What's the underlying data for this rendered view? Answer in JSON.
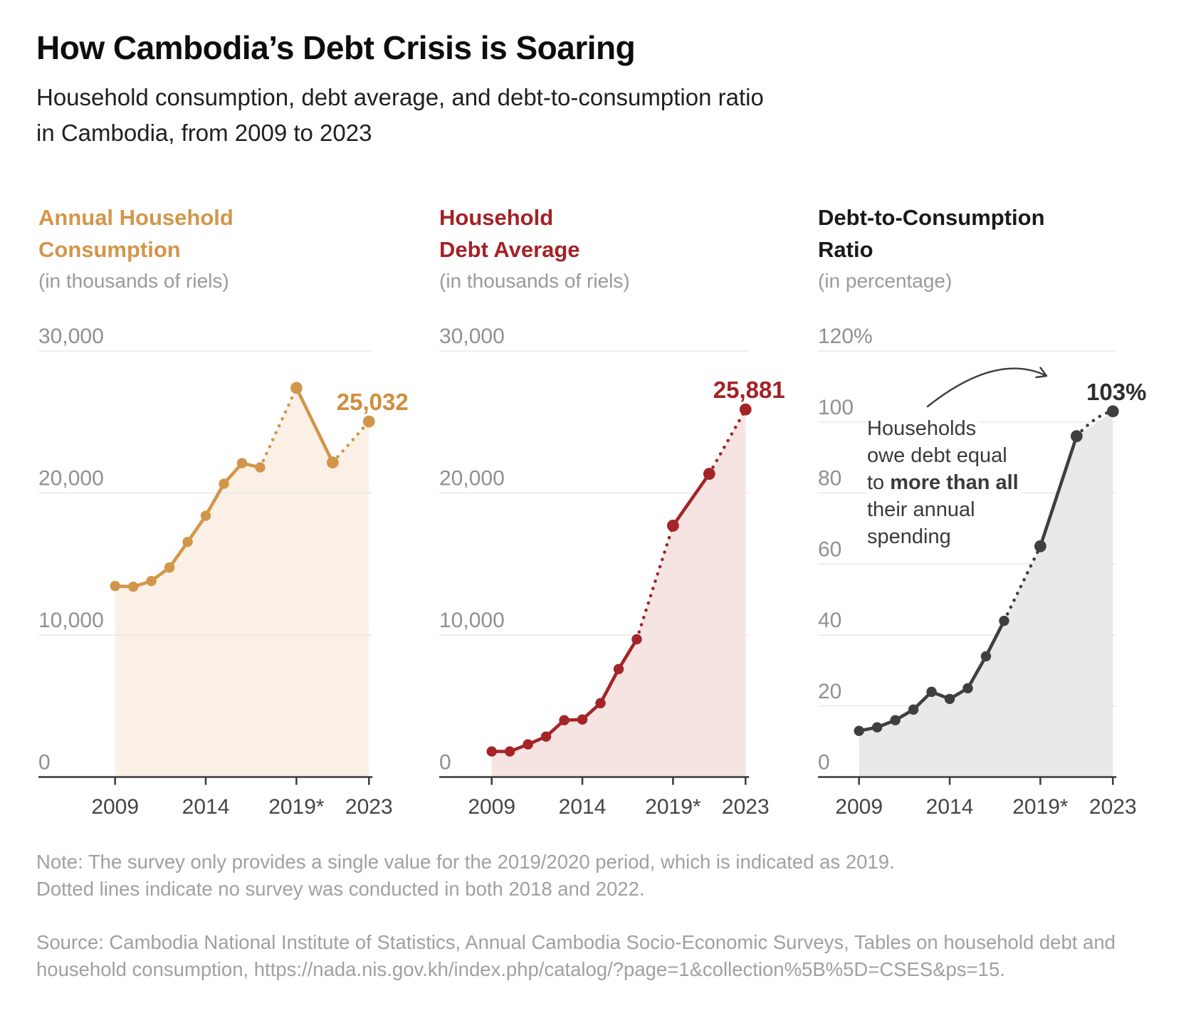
{
  "header": {
    "title": "How Cambodia’s Debt Crisis is Soaring",
    "subtitle_line1": "Household consumption, debt average, and debt-to-consumption ratio",
    "subtitle_line2": "in Cambodia, from 2009 to 2023"
  },
  "chart_data": [
    {
      "type": "line",
      "title": "Annual Household Consumption",
      "title_lines": [
        "Annual Household",
        "Consumption"
      ],
      "unit": "(in thousands of riels)",
      "x": [
        2009,
        2010,
        2011,
        2012,
        2013,
        2014,
        2015,
        2016,
        2017,
        2019,
        2021,
        2023
      ],
      "values": [
        13450,
        13400,
        13800,
        14750,
        16550,
        18400,
        20650,
        22100,
        21800,
        27400,
        22150,
        25032
      ],
      "dotted_segments": [
        [
          2017,
          2019
        ],
        [
          2021,
          2023
        ]
      ],
      "end_label": "25,032",
      "ymax": 30000,
      "ylim": [
        0,
        30000
      ],
      "grid": "horizontal",
      "legend": "none",
      "yticks": [
        {
          "value": 30000,
          "label": "30,000"
        },
        {
          "value": 20000,
          "label": "20,000"
        },
        {
          "value": 10000,
          "label": "10,000"
        },
        {
          "value": 0,
          "label": "0"
        }
      ],
      "xticks": [
        {
          "value": 2009,
          "label": "2009"
        },
        {
          "value": 2014,
          "label": "2014"
        },
        {
          "value": 2019,
          "label": "2019*"
        },
        {
          "value": 2023,
          "label": "2023"
        }
      ],
      "colors": {
        "line": "#d2964a",
        "fill": "#faf0e5",
        "label": "#cf8f3d"
      }
    },
    {
      "type": "line",
      "title": "Household Debt Average",
      "title_lines": [
        "Household",
        "Debt Average"
      ],
      "unit": "(in thousands of riels)",
      "x": [
        2009,
        2010,
        2011,
        2012,
        2013,
        2014,
        2015,
        2016,
        2017,
        2019,
        2021,
        2023
      ],
      "values": [
        1800,
        1800,
        2300,
        2850,
        4000,
        4050,
        5200,
        7600,
        9700,
        17700,
        21350,
        25881
      ],
      "dotted_segments": [
        [
          2017,
          2019
        ],
        [
          2021,
          2023
        ]
      ],
      "end_label": "25,881",
      "ymax": 30000,
      "ylim": [
        0,
        30000
      ],
      "grid": "horizontal",
      "legend": "none",
      "yticks": [
        {
          "value": 30000,
          "label": "30,000"
        },
        {
          "value": 20000,
          "label": "20,000"
        },
        {
          "value": 10000,
          "label": "10,000"
        },
        {
          "value": 0,
          "label": "0"
        }
      ],
      "xticks": [
        {
          "value": 2009,
          "label": "2009"
        },
        {
          "value": 2014,
          "label": "2014"
        },
        {
          "value": 2019,
          "label": "2019*"
        },
        {
          "value": 2023,
          "label": "2023"
        }
      ],
      "colors": {
        "line": "#a42428",
        "fill": "#f6e4e3",
        "label": "#a42226"
      }
    },
    {
      "type": "line",
      "title": "Debt-to-Consumption Ratio",
      "title_lines": [
        "Debt-to-Consumption",
        "Ratio"
      ],
      "unit": "(in percentage)",
      "x": [
        2009,
        2010,
        2011,
        2012,
        2013,
        2014,
        2015,
        2016,
        2017,
        2019,
        2021,
        2023
      ],
      "values": [
        13,
        14,
        16,
        19,
        24,
        22,
        25,
        34,
        44,
        65,
        96,
        103
      ],
      "dotted_segments": [
        [
          2017,
          2019
        ],
        [
          2021,
          2023
        ]
      ],
      "curve_last_dotted": true,
      "end_label": "103%",
      "ymax": 120,
      "ylim": [
        0,
        120
      ],
      "grid": "horizontal",
      "legend": "none",
      "yticks": [
        {
          "value": 120,
          "label": "120%"
        },
        {
          "value": 100,
          "label": "100"
        },
        {
          "value": 80,
          "label": "80"
        },
        {
          "value": 60,
          "label": "60"
        },
        {
          "value": 40,
          "label": "40"
        },
        {
          "value": 20,
          "label": "20"
        },
        {
          "value": 0,
          "label": "0"
        }
      ],
      "xticks": [
        {
          "value": 2009,
          "label": "2009"
        },
        {
          "value": 2014,
          "label": "2014"
        },
        {
          "value": 2019,
          "label": "2019*"
        },
        {
          "value": 2023,
          "label": "2023"
        }
      ],
      "colors": {
        "line": "#3f3f3f",
        "fill": "#e9e9e9",
        "label": "#2e2e2e"
      },
      "annotation": {
        "line1": "Households",
        "line2": "owe debt equal",
        "line3_prefix": "to ",
        "line3_bold": "more than all",
        "line4": "their annual",
        "line5": "spending"
      }
    }
  ],
  "notes": {
    "note_line1": "Note: The survey only provides a single value for the 2019/2020 period, which is indicated as 2019.",
    "note_line2": "Dotted lines indicate no survey was conducted in both 2018 and 2022.",
    "source_line1": "Source: Cambodia National Institute of Statistics, Annual Cambodia Socio-Economic Surveys, Tables on household debt and",
    "source_line2": "household consumption, https://nada.nis.gov.kh/index.php/catalog/?page=1&collection%5B%5D=CSES&ps=15."
  }
}
